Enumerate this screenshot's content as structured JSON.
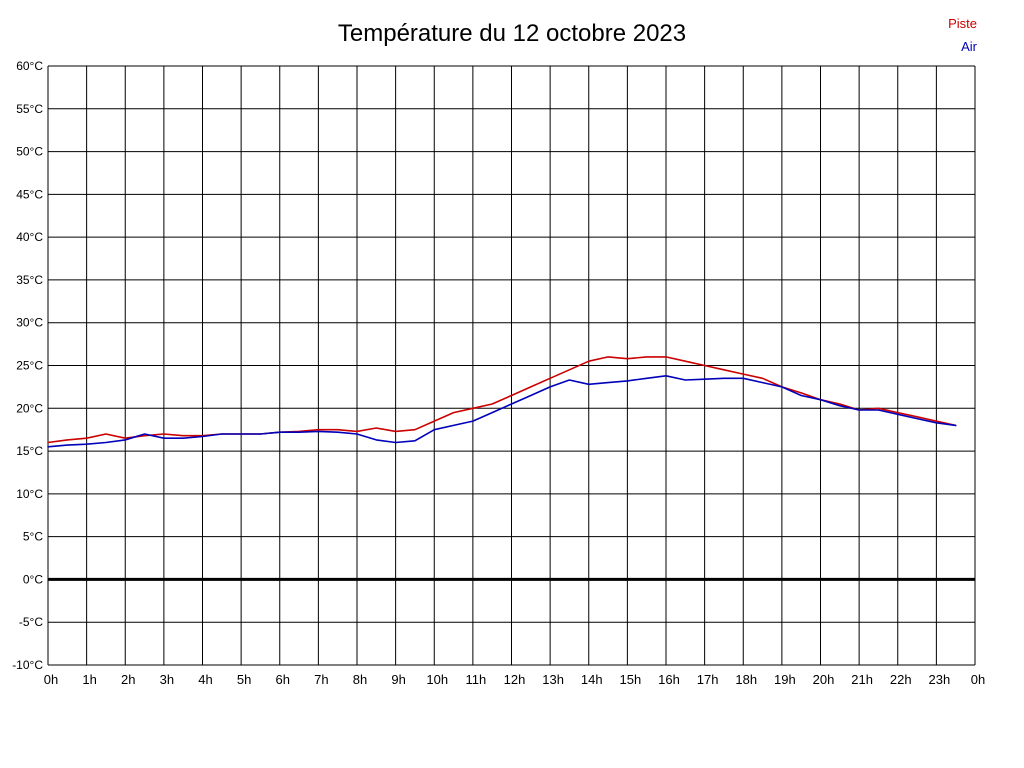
{
  "chart_data": {
    "type": "line",
    "title": "Température du 12 octobre 2023",
    "xlabel": "",
    "ylabel": "",
    "xlim": [
      0,
      24
    ],
    "ylim": [
      -10,
      60
    ],
    "y_step": 5,
    "grid": true,
    "legend_position": "top-right",
    "zero_line_thick": true,
    "y_tick_suffix": "°C",
    "x_tick_labels": [
      "0h",
      "1h",
      "2h",
      "3h",
      "4h",
      "5h",
      "6h",
      "7h",
      "8h",
      "9h",
      "10h",
      "11h",
      "12h",
      "13h",
      "14h",
      "15h",
      "16h",
      "17h",
      "18h",
      "19h",
      "20h",
      "21h",
      "22h",
      "23h",
      "0h"
    ],
    "x": [
      0,
      0.5,
      1,
      1.5,
      2,
      2.5,
      3,
      3.5,
      4,
      4.5,
      5,
      5.5,
      6,
      6.5,
      7,
      7.5,
      8,
      8.5,
      9,
      9.5,
      10,
      10.5,
      11,
      11.5,
      12,
      12.5,
      13,
      13.5,
      14,
      14.5,
      15,
      15.5,
      16,
      16.5,
      17,
      17.5,
      18,
      18.5,
      19,
      19.5,
      20,
      20.5,
      21,
      21.5,
      22,
      22.5,
      23,
      23.5
    ],
    "series": [
      {
        "name": "Piste",
        "color": "#cc0000",
        "values": [
          16,
          16.3,
          16.5,
          17,
          16.5,
          16.8,
          17,
          16.8,
          16.8,
          17,
          17,
          17,
          17.2,
          17.3,
          17.5,
          17.5,
          17.3,
          17.7,
          17.3,
          17.5,
          18.5,
          19.5,
          20,
          20.5,
          21.5,
          22.5,
          23.5,
          24.5,
          25.5,
          26,
          25.8,
          26,
          26,
          25.5,
          25,
          24.5,
          24,
          23.5,
          22.5,
          21.8,
          21,
          20.5,
          19.8,
          20,
          19.5,
          19,
          18.5,
          18
        ]
      },
      {
        "name": "Air",
        "color": "#0000bb",
        "values": [
          15.5,
          15.7,
          15.8,
          16,
          16.3,
          17,
          16.5,
          16.5,
          16.7,
          17,
          17,
          17,
          17.2,
          17.2,
          17.3,
          17.2,
          17,
          16.3,
          16,
          16.2,
          17.5,
          18,
          18.5,
          19.5,
          20.5,
          21.5,
          22.5,
          23.3,
          22.8,
          23,
          23.2,
          23.5,
          23.8,
          23.3,
          23.4,
          23.5,
          23.5,
          23,
          22.5,
          21.5,
          21,
          20.3,
          19.8,
          19.8,
          19.3,
          18.8,
          18.3,
          18
        ]
      }
    ]
  },
  "colors": {
    "grid": "#000000",
    "axis_text": "#000000",
    "background": "#ffffff"
  }
}
